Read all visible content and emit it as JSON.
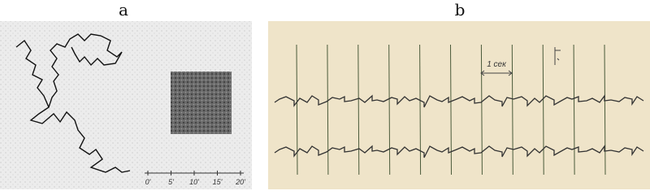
{
  "panels": [
    {
      "label": "a",
      "scale_labels": [
        "0'",
        "5'",
        "10'",
        "15'",
        "20'"
      ]
    },
    {
      "label": "b",
      "time_label": "1 сек"
    }
  ]
}
